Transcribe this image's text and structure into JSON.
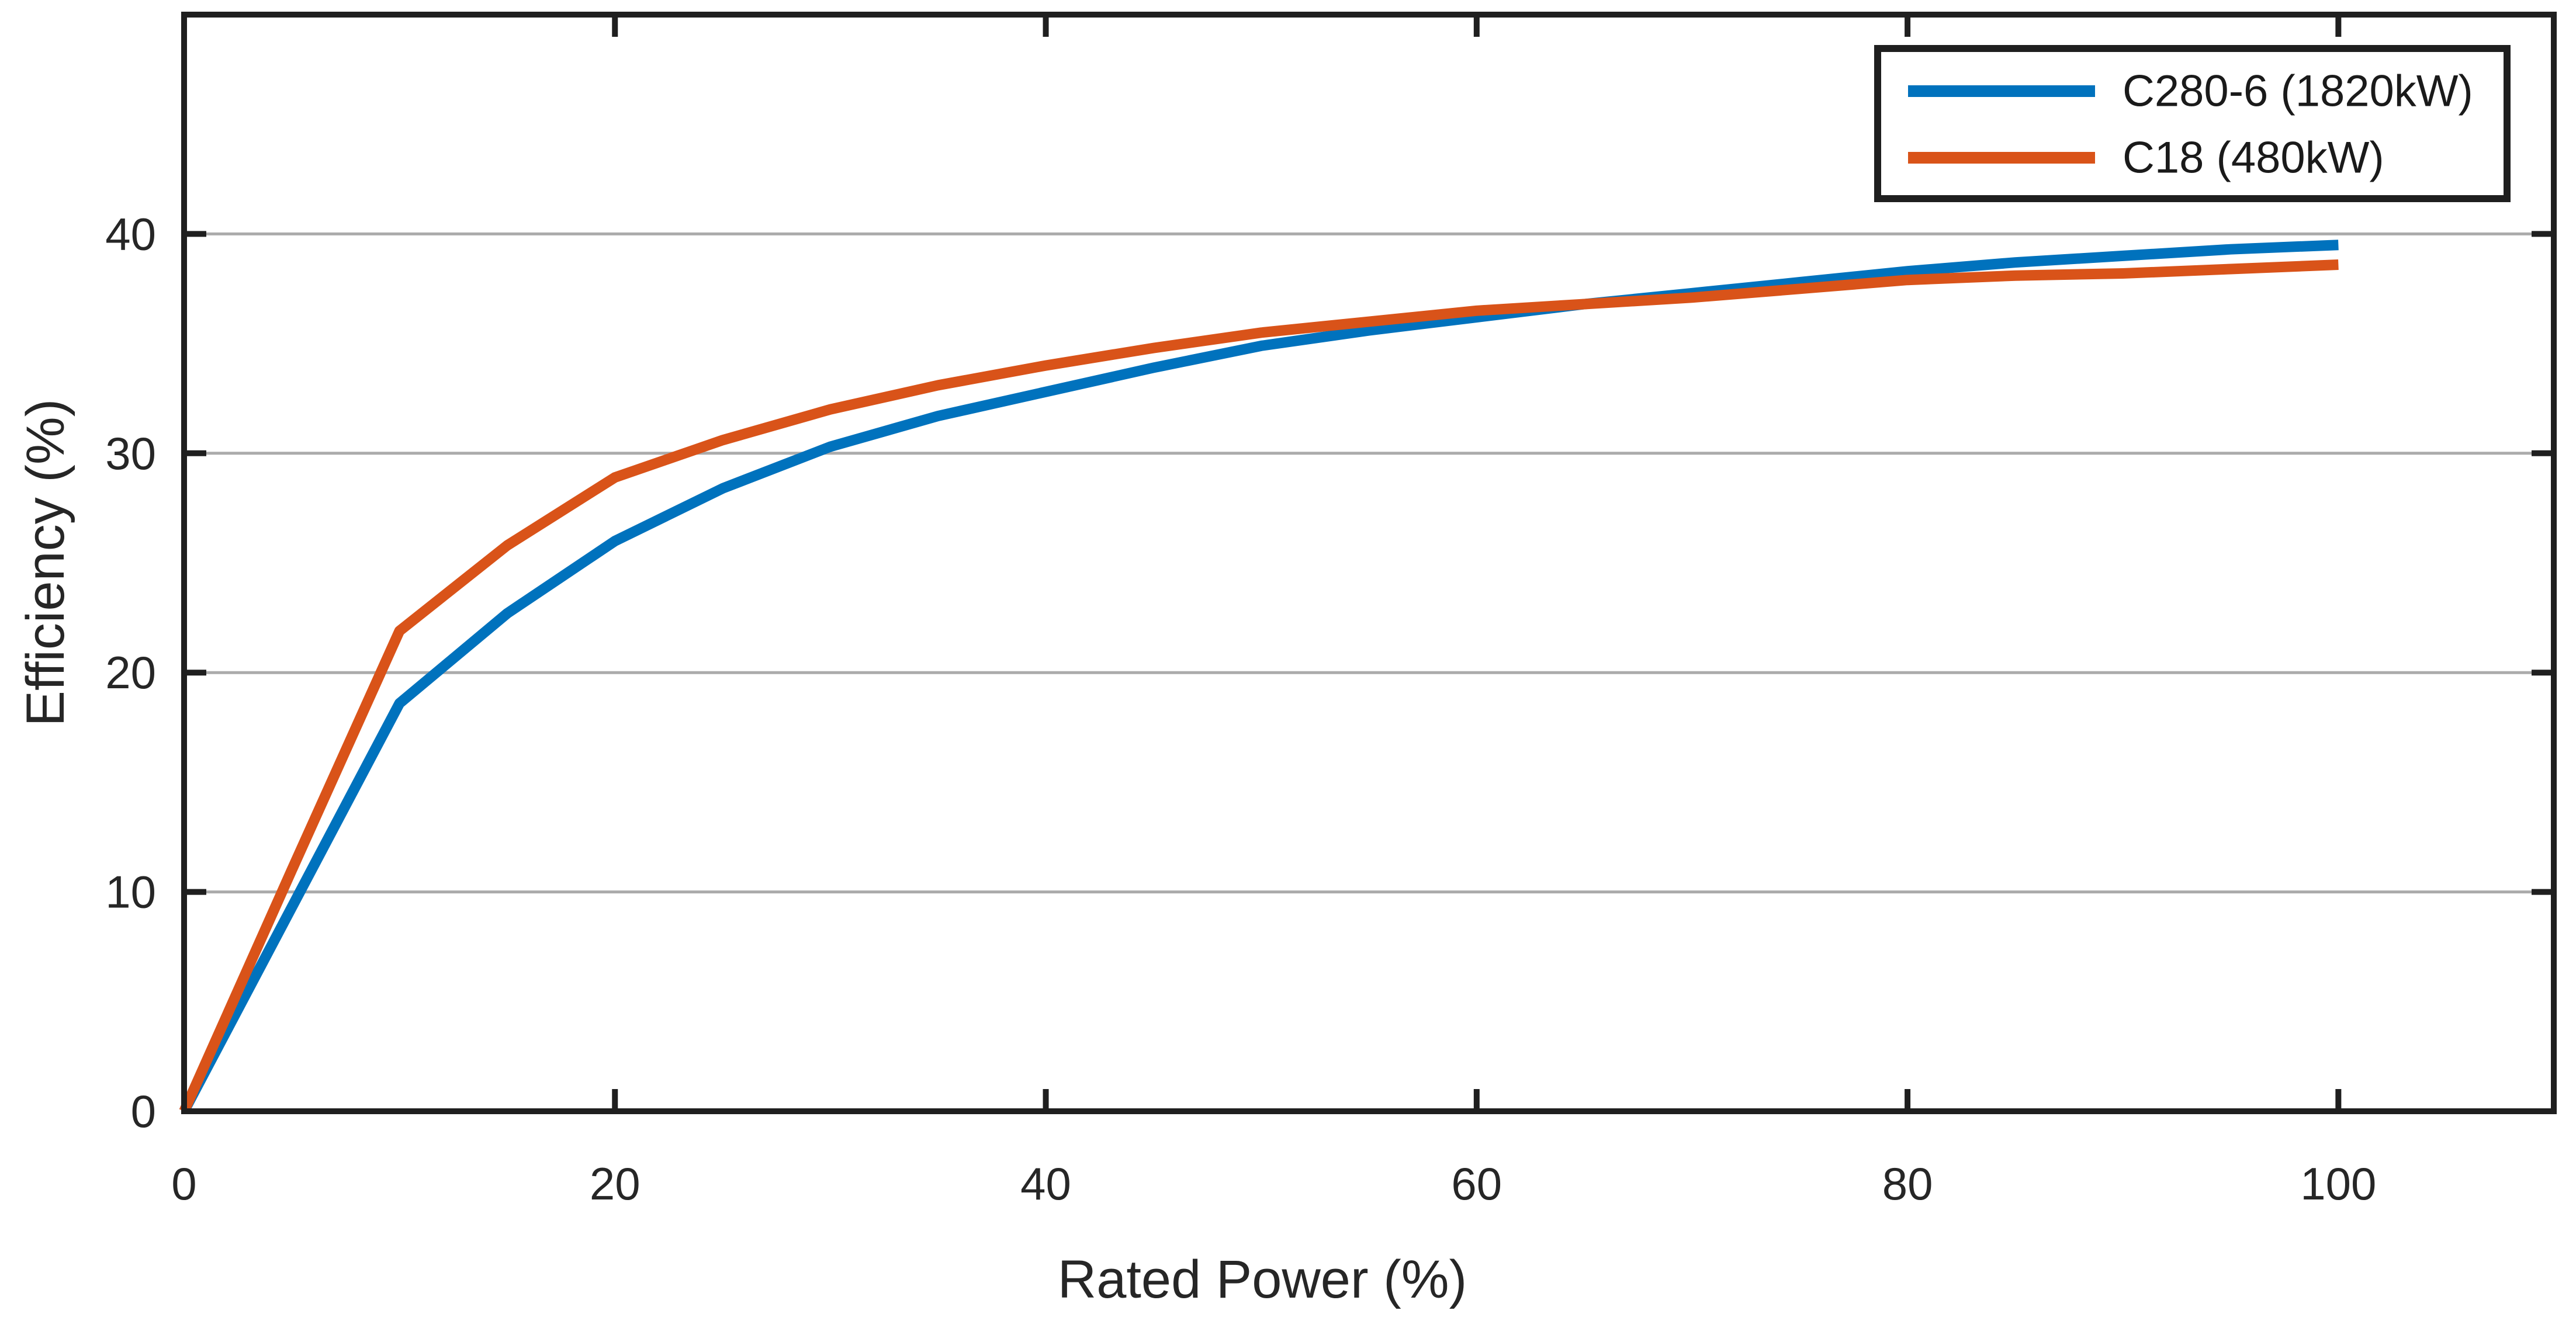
{
  "chart_data": {
    "type": "line",
    "title": "",
    "xlabel": "Rated Power (%)",
    "ylabel": "Efficiency (%)",
    "xlim": [
      0,
      110
    ],
    "ylim": [
      0,
      50
    ],
    "x_ticks": [
      0,
      20,
      40,
      60,
      80,
      100
    ],
    "y_ticks": [
      0,
      10,
      20,
      30,
      40
    ],
    "grid": "horizontal-gridlines-on",
    "legend_position": "top-right",
    "x": [
      0,
      5,
      10,
      15,
      20,
      25,
      30,
      35,
      40,
      45,
      50,
      55,
      60,
      65,
      70,
      75,
      80,
      85,
      90,
      95,
      100
    ],
    "series": [
      {
        "name": "C280-6 (1820kW)",
        "color": "#0072BD",
        "values": [
          0,
          9.3,
          18.6,
          22.7,
          26.0,
          28.4,
          30.3,
          31.7,
          32.8,
          33.9,
          34.9,
          35.6,
          36.2,
          36.8,
          37.3,
          37.8,
          38.3,
          38.7,
          39.0,
          39.3,
          39.5
        ]
      },
      {
        "name": "C18 (480kW)",
        "color": "#D95319",
        "values": [
          0,
          11.0,
          21.9,
          25.8,
          28.9,
          30.6,
          32.0,
          33.1,
          34.0,
          34.8,
          35.5,
          36.0,
          36.5,
          36.8,
          37.1,
          37.5,
          37.9,
          38.1,
          38.2,
          38.4,
          38.6
        ]
      }
    ]
  },
  "colors": {
    "axis": "#1f1f1f",
    "text": "#262626",
    "grid": "#ABABAB",
    "background": "#ffffff",
    "series_blue": "#0072BD",
    "series_orange": "#D95319"
  }
}
